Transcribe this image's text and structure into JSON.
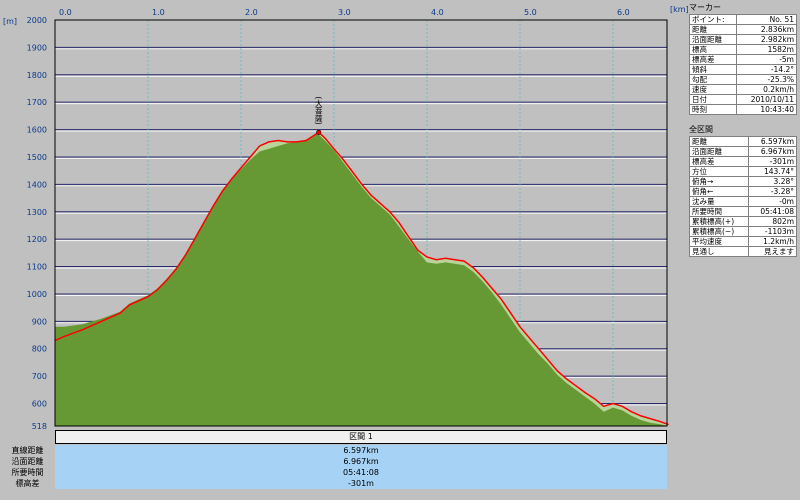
{
  "chart_data": {
    "type": "area",
    "x_unit": "[km]",
    "y_unit": "[m]",
    "x_ticks": [
      "0.0",
      "1.0",
      "2.0",
      "3.0",
      "4.0",
      "5.0",
      "6.0"
    ],
    "y_ticks": [
      "2000",
      "1900",
      "1800",
      "1700",
      "1600",
      "1500",
      "1400",
      "1300",
      "1200",
      "1100",
      "1000",
      "900",
      "800",
      "700",
      "600",
      "518"
    ],
    "xlim": [
      0,
      6.597
    ],
    "ylim": [
      518,
      2000
    ],
    "series": [
      {
        "values": [
          [
            0.0,
            830
          ],
          [
            0.1,
            845
          ],
          [
            0.3,
            870
          ],
          [
            0.5,
            900
          ],
          [
            0.7,
            930
          ],
          [
            0.8,
            960
          ],
          [
            0.9,
            975
          ],
          [
            1.0,
            990
          ],
          [
            1.1,
            1015
          ],
          [
            1.2,
            1050
          ],
          [
            1.3,
            1090
          ],
          [
            1.4,
            1140
          ],
          [
            1.5,
            1200
          ],
          [
            1.6,
            1260
          ],
          [
            1.7,
            1320
          ],
          [
            1.8,
            1375
          ],
          [
            1.9,
            1420
          ],
          [
            2.0,
            1460
          ],
          [
            2.1,
            1500
          ],
          [
            2.2,
            1540
          ],
          [
            2.3,
            1555
          ],
          [
            2.4,
            1560
          ],
          [
            2.5,
            1555
          ],
          [
            2.6,
            1555
          ],
          [
            2.7,
            1560
          ],
          [
            2.8,
            1582
          ],
          [
            2.836,
            1590
          ],
          [
            2.9,
            1570
          ],
          [
            3.0,
            1530
          ],
          [
            3.1,
            1490
          ],
          [
            3.2,
            1445
          ],
          [
            3.3,
            1400
          ],
          [
            3.4,
            1360
          ],
          [
            3.5,
            1330
          ],
          [
            3.6,
            1300
          ],
          [
            3.7,
            1260
          ],
          [
            3.8,
            1210
          ],
          [
            3.9,
            1160
          ],
          [
            4.0,
            1135
          ],
          [
            4.1,
            1125
          ],
          [
            4.2,
            1130
          ],
          [
            4.3,
            1125
          ],
          [
            4.4,
            1120
          ],
          [
            4.5,
            1095
          ],
          [
            4.6,
            1060
          ],
          [
            4.7,
            1020
          ],
          [
            4.8,
            980
          ],
          [
            4.9,
            930
          ],
          [
            5.0,
            880
          ],
          [
            5.1,
            840
          ],
          [
            5.2,
            800
          ],
          [
            5.3,
            760
          ],
          [
            5.4,
            720
          ],
          [
            5.5,
            690
          ],
          [
            5.6,
            665
          ],
          [
            5.7,
            640
          ],
          [
            5.8,
            618
          ],
          [
            5.9,
            590
          ],
          [
            6.0,
            600
          ],
          [
            6.1,
            590
          ],
          [
            6.2,
            570
          ],
          [
            6.3,
            555
          ],
          [
            6.4,
            545
          ],
          [
            6.5,
            535
          ],
          [
            6.597,
            523
          ]
        ]
      }
    ],
    "ground": [
      [
        0.0,
        880
      ],
      [
        0.1,
        880
      ],
      [
        0.3,
        890
      ],
      [
        0.5,
        910
      ],
      [
        0.7,
        935
      ],
      [
        0.8,
        965
      ],
      [
        0.9,
        980
      ],
      [
        1.0,
        995
      ],
      [
        1.1,
        1020
      ],
      [
        1.2,
        1055
      ],
      [
        1.3,
        1095
      ],
      [
        1.4,
        1145
      ],
      [
        1.5,
        1205
      ],
      [
        1.6,
        1265
      ],
      [
        1.7,
        1325
      ],
      [
        1.8,
        1380
      ],
      [
        1.9,
        1420
      ],
      [
        2.0,
        1455
      ],
      [
        2.1,
        1490
      ],
      [
        2.2,
        1520
      ],
      [
        2.3,
        1530
      ],
      [
        2.4,
        1540
      ],
      [
        2.5,
        1550
      ],
      [
        2.6,
        1555
      ],
      [
        2.7,
        1560
      ],
      [
        2.8,
        1582
      ],
      [
        2.836,
        1582
      ],
      [
        2.9,
        1560
      ],
      [
        3.0,
        1525
      ],
      [
        3.1,
        1480
      ],
      [
        3.2,
        1435
      ],
      [
        3.3,
        1390
      ],
      [
        3.4,
        1350
      ],
      [
        3.5,
        1320
      ],
      [
        3.6,
        1290
      ],
      [
        3.7,
        1245
      ],
      [
        3.8,
        1200
      ],
      [
        3.9,
        1155
      ],
      [
        4.0,
        1115
      ],
      [
        4.1,
        1110
      ],
      [
        4.2,
        1115
      ],
      [
        4.3,
        1110
      ],
      [
        4.4,
        1105
      ],
      [
        4.5,
        1080
      ],
      [
        4.6,
        1045
      ],
      [
        4.7,
        1005
      ],
      [
        4.8,
        960
      ],
      [
        4.9,
        910
      ],
      [
        5.0,
        860
      ],
      [
        5.1,
        820
      ],
      [
        5.2,
        780
      ],
      [
        5.3,
        745
      ],
      [
        5.4,
        705
      ],
      [
        5.5,
        675
      ],
      [
        5.6,
        650
      ],
      [
        5.7,
        625
      ],
      [
        5.8,
        600
      ],
      [
        5.9,
        570
      ],
      [
        6.0,
        585
      ],
      [
        6.1,
        575
      ],
      [
        6.2,
        555
      ],
      [
        6.3,
        540
      ],
      [
        6.4,
        530
      ],
      [
        6.5,
        525
      ],
      [
        6.597,
        518
      ]
    ],
    "annotations": [
      {
        "text": "(大菩薩)",
        "x": 2.836,
        "y": 1590
      }
    ]
  },
  "section_label": "区間 1",
  "summary": [
    {
      "label": "直線距離",
      "value": "6.597km"
    },
    {
      "label": "沿面距離",
      "value": "6.967km"
    },
    {
      "label": "所要時間",
      "value": "05:41:08"
    },
    {
      "label": "標高差",
      "value": "-301m"
    }
  ],
  "marker": {
    "title": "マーカー",
    "rows": [
      {
        "label": "ポイント:",
        "value": "No. 51"
      },
      {
        "label": "距離",
        "value": "2.836km"
      },
      {
        "label": "沿面距離",
        "value": "2.982km"
      },
      {
        "label": "標高",
        "value": "1582m"
      },
      {
        "label": "標高差",
        "value": "-5m"
      },
      {
        "label": "傾斜",
        "value": "-14.2°"
      },
      {
        "label": "勾配",
        "value": "-25.3%"
      },
      {
        "label": "速度",
        "value": "0.2km/h"
      },
      {
        "label": "日付",
        "value": "2010/10/11"
      },
      {
        "label": "時刻",
        "value": "10:43:40"
      }
    ]
  },
  "whole": {
    "title": "全区間",
    "rows": [
      {
        "label": "距離",
        "value": "6.597km"
      },
      {
        "label": "沿面距離",
        "value": "6.967km"
      },
      {
        "label": "標高差",
        "value": "-301m"
      },
      {
        "label": "方位",
        "value": "143.74°"
      },
      {
        "label": "俯角→",
        "value": "3.28°"
      },
      {
        "label": "俯角←",
        "value": "-3.28°"
      },
      {
        "label": "沈み量",
        "value": "-0m"
      },
      {
        "label": "所要時間",
        "value": "05:41:08"
      },
      {
        "label": "累積標高(+)",
        "value": "802m"
      },
      {
        "label": "累積標高(−)",
        "value": "-1103m"
      },
      {
        "label": "平均速度",
        "value": "1.2km/h"
      },
      {
        "label": "見通し",
        "value": "見えます"
      }
    ]
  },
  "colors": {
    "plot_bg": "#c0c0c0",
    "ground_fill": "#669933",
    "light_area": "#b8d49a",
    "track_line": "#ff0000",
    "grid_v": "#5bbcc4",
    "grid_h_dark": "#2a2a6a",
    "grid_h_light": "#ffffff",
    "summary_bg": "#a6d2f6"
  }
}
